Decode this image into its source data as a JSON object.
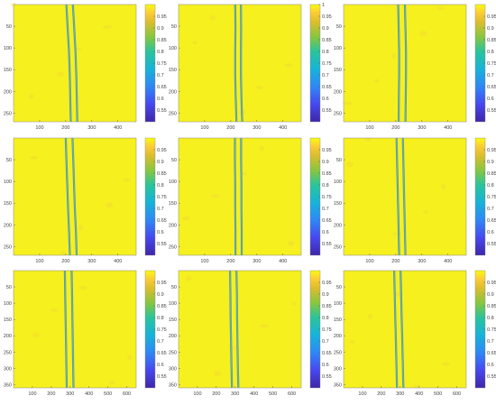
{
  "figure": {
    "background": "#ffffff",
    "field_color": "#f6f01e",
    "crack_color": "#3a8ec9"
  },
  "chart_data": [
    {
      "type": "heatmap",
      "panel": "r1c1",
      "title": "",
      "xlabel": "",
      "ylabel": "",
      "xlim": [
        0,
        470
      ],
      "ylim": [
        270,
        0
      ],
      "xticks": [
        100,
        200,
        300,
        400
      ],
      "yticks": [
        50,
        100,
        150,
        200,
        250
      ],
      "crack": {
        "x_center": [
          215,
          220,
          225,
          228,
          230,
          232
        ],
        "width": 25
      },
      "colorbar": {
        "range": [
          0.5,
          1.0
        ],
        "ticks": [
          "0.95",
          "0.9",
          "0.85",
          "0.8",
          "0.75",
          "0.7",
          "0.65",
          "0.6",
          "0.55"
        ]
      }
    },
    {
      "type": "heatmap",
      "panel": "r1c2",
      "title": "",
      "xlabel": "",
      "ylabel": "",
      "xlim": [
        0,
        470
      ],
      "ylim": [
        270,
        0
      ],
      "xticks": [
        100,
        200,
        300,
        400
      ],
      "yticks": [
        50,
        100,
        150,
        200,
        250
      ],
      "crack": {
        "x_center": [
          228,
          229,
          228,
          228,
          230,
          233
        ],
        "width": 22
      },
      "colorbar": {
        "range": [
          0.5,
          1.0
        ],
        "ticks": [
          "1",
          "0.95",
          "0.9",
          "0.85",
          "0.8",
          "0.75",
          "0.7",
          "0.65",
          "0.6",
          "0.55"
        ]
      }
    },
    {
      "type": "heatmap",
      "panel": "r1c3",
      "title": "",
      "xlabel": "",
      "ylabel": "",
      "xlim": [
        0,
        470
      ],
      "ylim": [
        270,
        0
      ],
      "xticks": [
        100,
        200,
        300,
        400
      ],
      "yticks": [
        50,
        100,
        150,
        200,
        250
      ],
      "crack": {
        "x_center": [
          222,
          224,
          226,
          226,
          225,
          224
        ],
        "width": 26
      },
      "colorbar": {
        "range": [
          0.5,
          1.0
        ],
        "ticks": [
          "0.95",
          "0.9",
          "0.85",
          "0.8",
          "0.75",
          "0.7",
          "0.65",
          "0.6",
          "0.55"
        ]
      }
    },
    {
      "type": "heatmap",
      "panel": "r2c1",
      "title": "",
      "xlabel": "",
      "ylabel": "",
      "xlim": [
        0,
        470
      ],
      "ylim": [
        270,
        0
      ],
      "xticks": [
        100,
        200,
        300,
        400
      ],
      "yticks": [
        50,
        100,
        150,
        200,
        250
      ],
      "crack": {
        "x_center": [
          213,
          216,
          219,
          222,
          226,
          229
        ],
        "width": 26
      },
      "colorbar": {
        "range": [
          0.5,
          1.0
        ],
        "ticks": [
          "0.95",
          "0.9",
          "0.85",
          "0.8",
          "0.75",
          "0.7",
          "0.65",
          "0.6",
          "0.55"
        ]
      }
    },
    {
      "type": "heatmap",
      "panel": "r2c2",
      "title": "",
      "xlabel": "",
      "ylabel": "",
      "xlim": [
        0,
        470
      ],
      "ylim": [
        270,
        0
      ],
      "xticks": [
        100,
        200,
        300,
        400
      ],
      "yticks": [
        50,
        100,
        150,
        200,
        250
      ],
      "crack": {
        "x_center": [
          228,
          228,
          229,
          229,
          230,
          230
        ],
        "width": 24
      },
      "colorbar": {
        "range": [
          0.5,
          1.0
        ],
        "ticks": [
          "0.95",
          "0.9",
          "0.85",
          "0.8",
          "0.75",
          "0.7",
          "0.65",
          "0.6",
          "0.55"
        ]
      }
    },
    {
      "type": "heatmap",
      "panel": "r2c3",
      "title": "",
      "xlabel": "",
      "ylabel": "",
      "xlim": [
        0,
        470
      ],
      "ylim": [
        270,
        0
      ],
      "xticks": [
        100,
        200,
        300,
        400
      ],
      "yticks": [
        50,
        100,
        150,
        200,
        250
      ],
      "crack": {
        "x_center": [
          215,
          217,
          219,
          221,
          223,
          225
        ],
        "width": 24
      },
      "colorbar": {
        "range": [
          0.5,
          1.0
        ],
        "ticks": [
          "0.95",
          "0.9",
          "0.85",
          "0.8",
          "0.75",
          "0.7",
          "0.65",
          "0.6",
          "0.55"
        ]
      }
    },
    {
      "type": "heatmap",
      "panel": "r3c1",
      "title": "",
      "xlabel": "",
      "ylabel": "",
      "xlim": [
        0,
        650
      ],
      "ylim": [
        360,
        0
      ],
      "xticks": [
        100,
        200,
        300,
        400,
        500,
        600
      ],
      "yticks": [
        50,
        100,
        150,
        200,
        250,
        300,
        350
      ],
      "crack": {
        "x_center": [
          290,
          292,
          294,
          296,
          298,
          300
        ],
        "width": 36
      },
      "colorbar": {
        "range": [
          0.5,
          1.0
        ],
        "ticks": [
          "0.95",
          "0.9",
          "0.85",
          "0.8",
          "0.75",
          "0.7",
          "0.65",
          "0.6",
          "0.55"
        ]
      }
    },
    {
      "type": "heatmap",
      "panel": "r3c2",
      "title": "",
      "xlabel": "",
      "ylabel": "",
      "xlim": [
        0,
        650
      ],
      "ylim": [
        360,
        0
      ],
      "xticks": [
        100,
        200,
        300,
        400,
        500,
        600
      ],
      "yticks": [
        50,
        100,
        150,
        200,
        250,
        300,
        350
      ],
      "crack": {
        "x_center": [
          290,
          292,
          293,
          295,
          297,
          300
        ],
        "width": 34
      },
      "colorbar": {
        "range": [
          0.5,
          1.0
        ],
        "ticks": [
          "0.95",
          "0.9",
          "0.85",
          "0.8",
          "0.75",
          "0.7",
          "0.65",
          "0.6",
          "0.55"
        ]
      }
    },
    {
      "type": "heatmap",
      "panel": "r3c3",
      "title": "",
      "xlabel": "",
      "ylabel": "",
      "xlim": [
        0,
        650
      ],
      "ylim": [
        360,
        0
      ],
      "xticks": [
        100,
        200,
        300,
        400,
        500,
        600
      ],
      "yticks": [
        50,
        100,
        150,
        200,
        250,
        300,
        350
      ],
      "crack": {
        "x_center": [
          285,
          288,
          291,
          294,
          297,
          300
        ],
        "width": 34
      },
      "colorbar": {
        "range": [
          0.5,
          1.0
        ],
        "ticks": [
          "0.95",
          "0.9",
          "0.85",
          "0.8",
          "0.75",
          "0.7",
          "0.65",
          "0.6",
          "0.55"
        ]
      }
    }
  ]
}
